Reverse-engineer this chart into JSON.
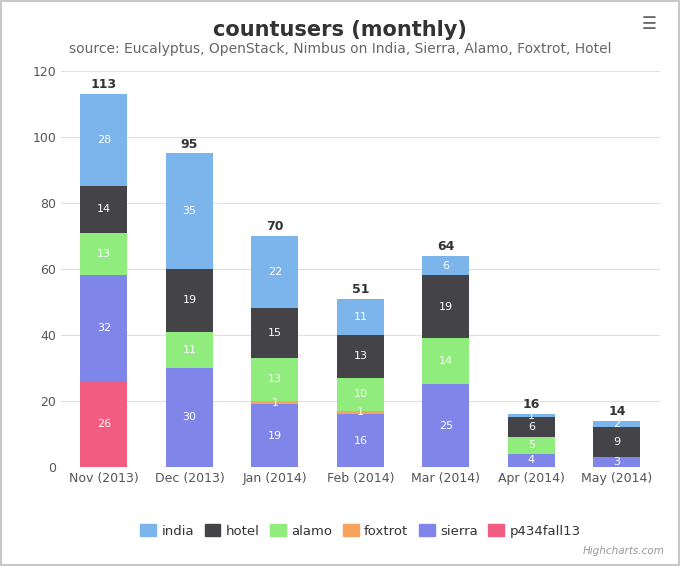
{
  "title": "countusers (monthly)",
  "subtitle": "source: Eucalyptus, OpenStack, Nimbus on India, Sierra, Alamo, Foxtrot, Hotel",
  "categories": [
    "Nov (2013)",
    "Dec (2013)",
    "Jan (2014)",
    "Feb (2014)",
    "Mar (2014)",
    "Apr (2014)",
    "May (2014)"
  ],
  "series": {
    "india": [
      28,
      35,
      22,
      11,
      6,
      1,
      2
    ],
    "hotel": [
      14,
      19,
      15,
      13,
      19,
      6,
      9
    ],
    "alamo": [
      13,
      11,
      13,
      10,
      14,
      5,
      0
    ],
    "foxtrot": [
      0,
      0,
      1,
      1,
      0,
      0,
      0
    ],
    "sierra": [
      32,
      30,
      19,
      16,
      25,
      4,
      3
    ],
    "p434fall13": [
      26,
      0,
      0,
      0,
      0,
      0,
      0
    ]
  },
  "totals": [
    113,
    95,
    70,
    51,
    64,
    16,
    14
  ],
  "colors": {
    "india": "#7cb5ec",
    "hotel": "#434348",
    "alamo": "#90ed7d",
    "foxtrot": "#f7a35c",
    "sierra": "#8085e9",
    "p434fall13": "#f15c80"
  },
  "legend_order": [
    "india",
    "hotel",
    "alamo",
    "foxtrot",
    "sierra",
    "p434fall13"
  ],
  "stack_order": [
    "p434fall13",
    "sierra",
    "foxtrot",
    "alamo",
    "hotel",
    "india"
  ],
  "ylim": [
    0,
    120
  ],
  "yticks": [
    0,
    20,
    40,
    60,
    80,
    100,
    120
  ],
  "background_color": "#ffffff",
  "plot_bg_color": "#ffffff",
  "grid_color": "#e0e0e0",
  "title_fontsize": 15,
  "subtitle_fontsize": 10,
  "tick_fontsize": 9,
  "label_fontsize": 8,
  "total_fontsize": 9,
  "watermark": "Highcharts.com",
  "border_color": "#c8c8c8"
}
